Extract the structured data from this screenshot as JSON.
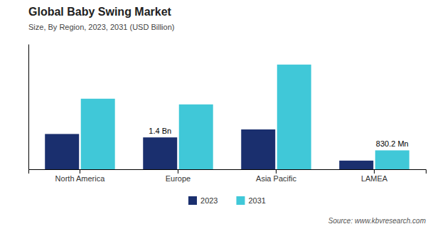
{
  "chart_data": {
    "type": "bar",
    "title": "Global Baby Swing Market",
    "subtitle": "Size, By Region, 2023, 2031 (USD Billion)",
    "source": "Source: www.kbvresearch.com",
    "categories": [
      "North America",
      "Europe",
      "Asia Pacific",
      "LAMEA"
    ],
    "series": [
      {
        "name": "2023",
        "color": "#1a2f6e",
        "values": [
          1.55,
          1.4,
          1.75,
          0.38
        ],
        "value_labels": [
          null,
          "1.4 Bn",
          null,
          null
        ]
      },
      {
        "name": "2031",
        "color": "#40c8d8",
        "values": [
          3.1,
          2.85,
          4.6,
          0.8302
        ],
        "value_labels": [
          null,
          null,
          null,
          "830.2 Mn"
        ]
      }
    ],
    "ylim": [
      0,
      5.5
    ],
    "tick_labels": "x",
    "grid": false,
    "legend": "bottom"
  }
}
